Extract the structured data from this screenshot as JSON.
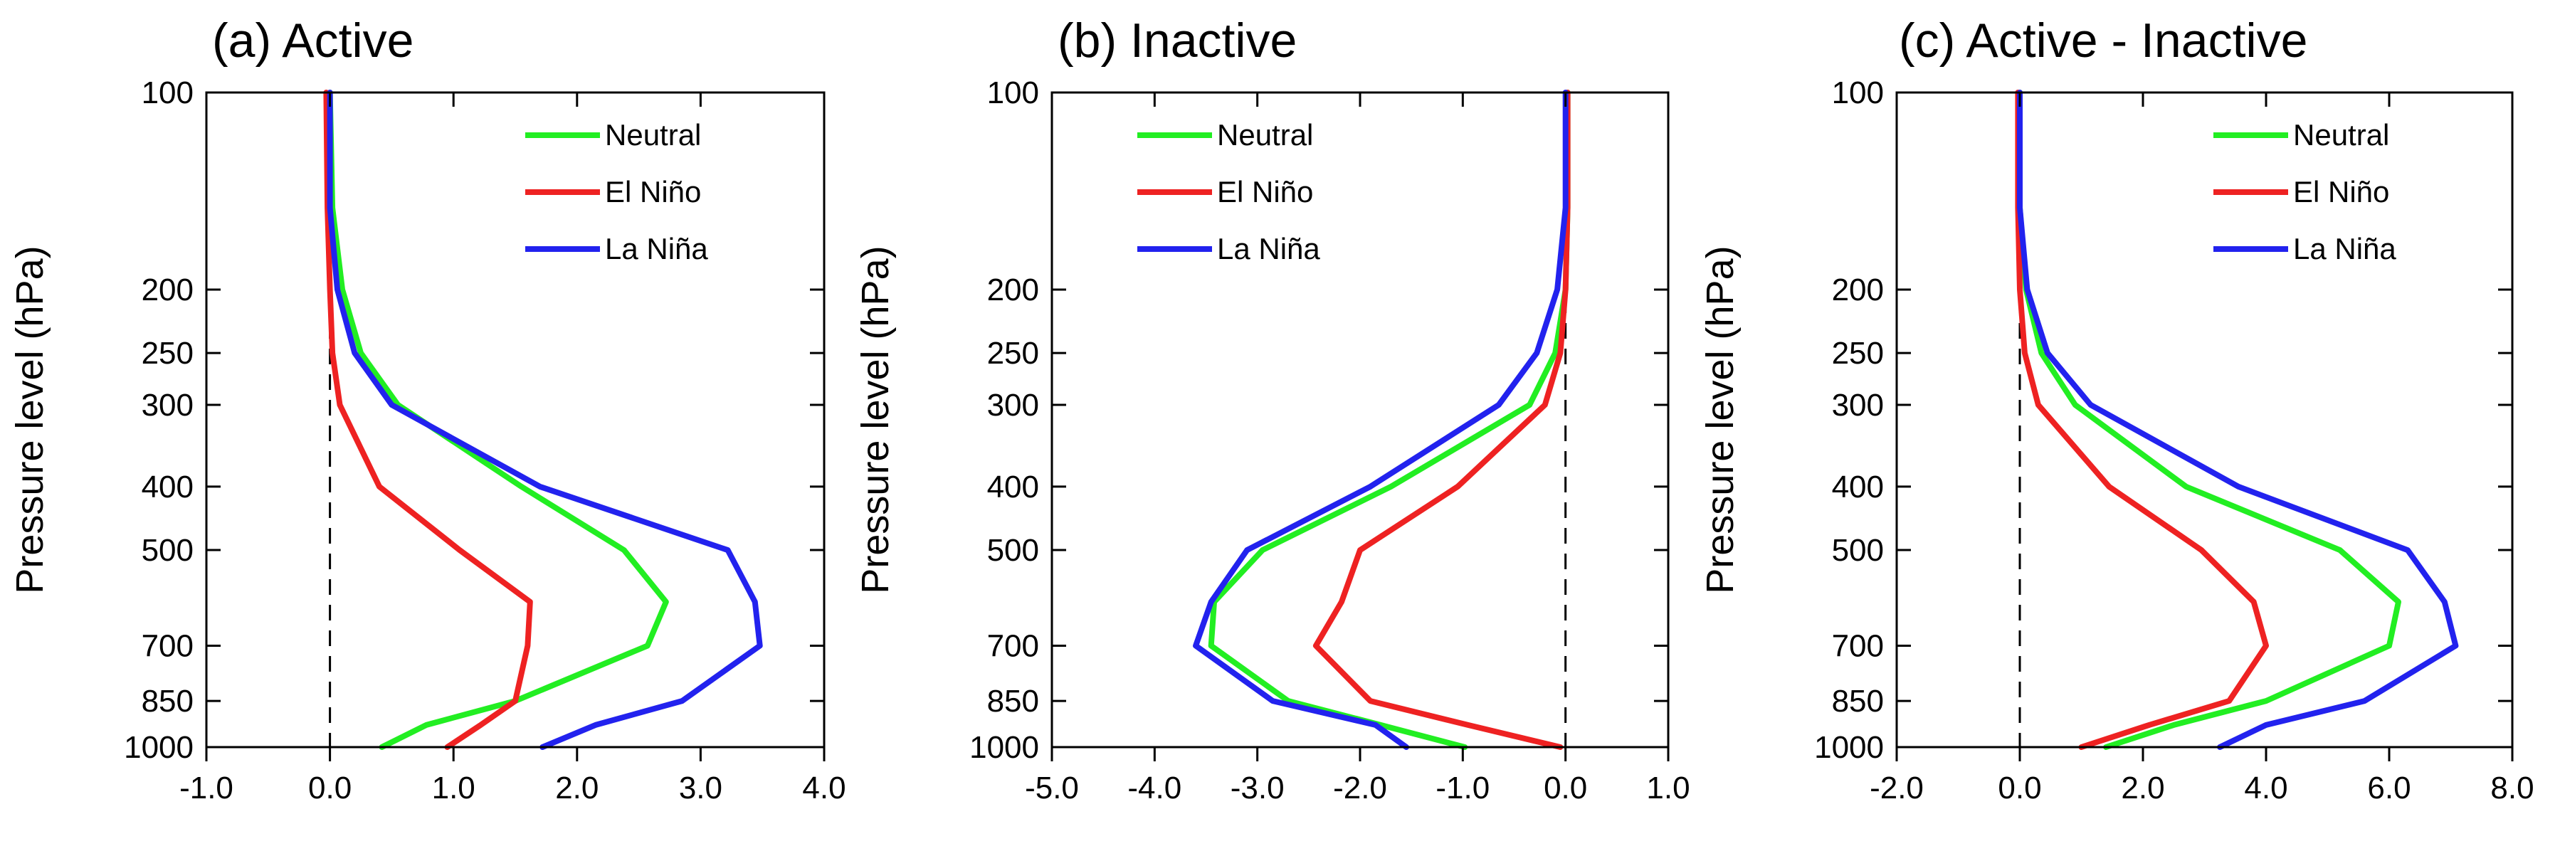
{
  "chart_data": [
    {
      "type": "line",
      "title": "(a) Active",
      "ylabel": "Pressure level (hPa)",
      "xlabel": "",
      "xlim": [
        -1.0,
        4.0
      ],
      "xticks": [
        -1.0,
        0.0,
        1.0,
        2.0,
        3.0,
        4.0
      ],
      "xtick_labels": [
        "-1.0",
        "0.0",
        "1.0",
        "2.0",
        "3.0",
        "4.0"
      ],
      "ylim": [
        1000,
        100
      ],
      "yscale": "log",
      "yticks": [
        100,
        200,
        250,
        300,
        400,
        500,
        700,
        850,
        1000
      ],
      "ytick_labels": [
        "100",
        "200",
        "250",
        "300",
        "400",
        "500",
        "700",
        "850",
        "1000"
      ],
      "zero_line": true,
      "legend_position": "top-right",
      "series": [
        {
          "name": "Neutral",
          "color": "#22ee22",
          "levels": [
            1000,
            925,
            850,
            700,
            600,
            500,
            400,
            300,
            250,
            200,
            150,
            100
          ],
          "values": [
            0.42,
            0.78,
            1.5,
            2.57,
            2.72,
            2.38,
            1.55,
            0.55,
            0.25,
            0.1,
            0.02,
            0.0
          ]
        },
        {
          "name": "El Niño",
          "color": "#ee2222",
          "levels": [
            1000,
            925,
            850,
            700,
            600,
            500,
            400,
            300,
            250,
            200,
            150,
            100
          ],
          "values": [
            0.95,
            1.22,
            1.5,
            1.6,
            1.62,
            1.05,
            0.4,
            0.08,
            0.02,
            0.0,
            -0.02,
            -0.03
          ]
        },
        {
          "name": "La Niña",
          "color": "#2222ee",
          "levels": [
            1000,
            925,
            850,
            700,
            600,
            500,
            400,
            300,
            250,
            200,
            150,
            100
          ],
          "values": [
            1.72,
            2.15,
            2.85,
            3.48,
            3.44,
            3.22,
            1.7,
            0.5,
            0.2,
            0.06,
            0.0,
            0.0
          ]
        }
      ]
    },
    {
      "type": "line",
      "title": "(b) Inactive",
      "ylabel": "Pressure level (hPa)",
      "xlabel": "",
      "xlim": [
        -5.0,
        1.0
      ],
      "xticks": [
        -5.0,
        -4.0,
        -3.0,
        -2.0,
        -1.0,
        0.0,
        1.0
      ],
      "xtick_labels": [
        "-5.0",
        "-4.0",
        "-3.0",
        "-2.0",
        "-1.0",
        "0.0",
        "1.0"
      ],
      "ylim": [
        1000,
        100
      ],
      "yscale": "log",
      "yticks": [
        100,
        200,
        250,
        300,
        400,
        500,
        700,
        850,
        1000
      ],
      "ytick_labels": [
        "100",
        "200",
        "250",
        "300",
        "400",
        "500",
        "700",
        "850",
        "1000"
      ],
      "zero_line": true,
      "legend_position": "top-left",
      "series": [
        {
          "name": "Neutral",
          "color": "#22ee22",
          "levels": [
            1000,
            925,
            850,
            700,
            600,
            500,
            400,
            300,
            250,
            200,
            150,
            100
          ],
          "values": [
            -0.98,
            -1.8,
            -2.7,
            -3.45,
            -3.42,
            -2.95,
            -1.7,
            -0.35,
            -0.1,
            0.0,
            0.02,
            0.02
          ]
        },
        {
          "name": "El Niño",
          "color": "#ee2222",
          "levels": [
            1000,
            925,
            850,
            700,
            600,
            500,
            400,
            300,
            250,
            200,
            150,
            100
          ],
          "values": [
            -0.05,
            -0.95,
            -1.9,
            -2.43,
            -2.18,
            -2.0,
            -1.05,
            -0.2,
            -0.05,
            0.0,
            0.02,
            0.02
          ]
        },
        {
          "name": "La Niña",
          "color": "#2222ee",
          "levels": [
            1000,
            925,
            850,
            700,
            600,
            500,
            400,
            300,
            250,
            200,
            150,
            100
          ],
          "values": [
            -1.55,
            -1.85,
            -2.85,
            -3.6,
            -3.45,
            -3.1,
            -1.9,
            -0.65,
            -0.28,
            -0.08,
            0.0,
            0.0
          ]
        }
      ]
    },
    {
      "type": "line",
      "title": "(c) Active - Inactive",
      "ylabel": "Pressure level (hPa)",
      "xlabel": "",
      "xlim": [
        -2.0,
        8.0
      ],
      "xticks": [
        -2.0,
        0.0,
        2.0,
        4.0,
        6.0,
        8.0
      ],
      "xtick_labels": [
        "-2.0",
        "0.0",
        "2.0",
        "4.0",
        "6.0",
        "8.0"
      ],
      "ylim": [
        1000,
        100
      ],
      "yscale": "log",
      "yticks": [
        100,
        200,
        250,
        300,
        400,
        500,
        700,
        850,
        1000
      ],
      "ytick_labels": [
        "100",
        "200",
        "250",
        "300",
        "400",
        "500",
        "700",
        "850",
        "1000"
      ],
      "zero_line": true,
      "legend_position": "top-right",
      "series": [
        {
          "name": "Neutral",
          "color": "#22ee22",
          "levels": [
            1000,
            925,
            850,
            700,
            600,
            500,
            400,
            300,
            250,
            200,
            150,
            100
          ],
          "values": [
            1.4,
            2.5,
            4.0,
            6.0,
            6.15,
            5.2,
            2.7,
            0.9,
            0.35,
            0.1,
            0.0,
            0.0
          ]
        },
        {
          "name": "El Niño",
          "color": "#ee2222",
          "levels": [
            1000,
            925,
            850,
            700,
            600,
            500,
            400,
            300,
            250,
            200,
            150,
            100
          ],
          "values": [
            1.0,
            2.1,
            3.4,
            4.0,
            3.8,
            2.95,
            1.45,
            0.3,
            0.08,
            0.0,
            -0.03,
            -0.03
          ]
        },
        {
          "name": "La Niña",
          "color": "#2222ee",
          "levels": [
            1000,
            925,
            850,
            700,
            600,
            500,
            400,
            300,
            250,
            200,
            150,
            100
          ],
          "values": [
            3.25,
            4.0,
            5.6,
            7.08,
            6.9,
            6.3,
            3.55,
            1.15,
            0.45,
            0.12,
            0.0,
            0.0
          ]
        }
      ]
    }
  ]
}
